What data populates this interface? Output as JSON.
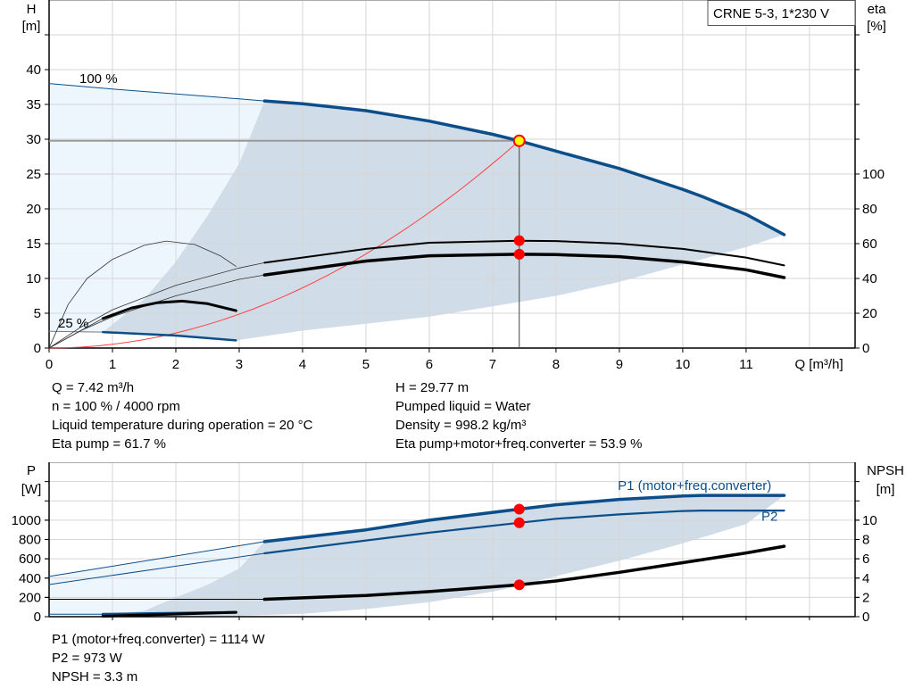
{
  "colors": {
    "curve_blue": "#0b4e8a",
    "shade_dark": "#d0dce7",
    "shade_light": "#eef6fd",
    "grid": "#d6d6d6",
    "duty_point": "#ff0000",
    "duty_fill": "#ffff00",
    "system_curve": "#ff4040"
  },
  "chart_data": [
    {
      "type": "line",
      "title": "CRNE 5-3, 1*230 V",
      "xlabel": "Q [m³/h]",
      "ylabel_left": [
        "H",
        "[m]"
      ],
      "ylabel_right": [
        "eta",
        "[%]"
      ],
      "xlim": [
        0,
        12.72
      ],
      "ylim_left": [
        0,
        50
      ],
      "ylim_right": [
        0,
        200
      ],
      "xticks": [
        0,
        1,
        2,
        3,
        4,
        5,
        6,
        7,
        8,
        9,
        10,
        11
      ],
      "yticks_left": [
        0,
        5,
        10,
        15,
        20,
        25,
        30,
        35,
        40
      ],
      "yticks_right": [
        0,
        20,
        40,
        60,
        80,
        100
      ],
      "grid": true,
      "annotations": [
        "100 %",
        "25 %"
      ],
      "series": [
        {
          "id": "H_100",
          "axis": "left",
          "values": [
            [
              0,
              38
            ],
            [
              1,
              37.2
            ],
            [
              2,
              36.5
            ],
            [
              3,
              35.8
            ],
            [
              3.4,
              35.5
            ],
            [
              4,
              35.1
            ],
            [
              5,
              34.1
            ],
            [
              6,
              32.6
            ],
            [
              7,
              30.7
            ],
            [
              7.42,
              29.77
            ],
            [
              8,
              28.3
            ],
            [
              9,
              25.8
            ],
            [
              10,
              22.8
            ],
            [
              10.3,
              21.8
            ],
            [
              11,
              19.2
            ],
            [
              11.6,
              16.3
            ]
          ]
        },
        {
          "id": "H_25",
          "axis": "left",
          "values": [
            [
              0,
              2.4
            ],
            [
              0.85,
              2.3
            ],
            [
              2,
              1.8
            ],
            [
              2.95,
              1.1
            ]
          ]
        },
        {
          "id": "eta_pump",
          "axis": "right",
          "values": [
            [
              0,
              0
            ],
            [
              0.5,
              12
            ],
            [
              1,
              22
            ],
            [
              2,
              36
            ],
            [
              3,
              46
            ],
            [
              3.4,
              49
            ],
            [
              5,
              57
            ],
            [
              6,
              60.5
            ],
            [
              7.42,
              61.7
            ],
            [
              8,
              61.5
            ],
            [
              9,
              60
            ],
            [
              10,
              57
            ],
            [
              11,
              52
            ],
            [
              11.6,
              47.5
            ]
          ]
        },
        {
          "id": "eta_total",
          "axis": "right",
          "values": [
            [
              0,
              0
            ],
            [
              0.5,
              10
            ],
            [
              1,
              18
            ],
            [
              2,
              30
            ],
            [
              3,
              39.5
            ],
            [
              3.4,
              42
            ],
            [
              5,
              50
            ],
            [
              6,
              53
            ],
            [
              7.42,
              53.9
            ],
            [
              8,
              53.7
            ],
            [
              9,
              52.5
            ],
            [
              10,
              49.5
            ],
            [
              11,
              45
            ],
            [
              11.6,
              40.5
            ]
          ]
        },
        {
          "id": "eta_pump_25",
          "axis": "right",
          "values": [
            [
              0,
              0
            ],
            [
              0.3,
              25
            ],
            [
              0.6,
              40
            ],
            [
              1,
              51
            ],
            [
              1.5,
              59
            ],
            [
              1.85,
              61.5
            ],
            [
              2.3,
              59.5
            ],
            [
              2.7,
              53
            ],
            [
              2.95,
              47
            ]
          ]
        },
        {
          "id": "eta_total_25",
          "axis": "right",
          "values": [
            [
              0,
              0
            ],
            [
              0.4,
              8
            ],
            [
              0.85,
              17
            ],
            [
              1.3,
              23
            ],
            [
              1.7,
              26
            ],
            [
              2.1,
              27
            ],
            [
              2.5,
              25.5
            ],
            [
              2.95,
              21.5
            ]
          ]
        },
        {
          "id": "system_curve",
          "axis": "left",
          "quadratic_through": [
            7.42,
            29.77
          ]
        }
      ],
      "operating_range_lower": [
        [
          2.95,
          1.1
        ],
        [
          4,
          2.5
        ],
        [
          5,
          3.5
        ],
        [
          6,
          4.5
        ],
        [
          7,
          6
        ],
        [
          8,
          7.5
        ],
        [
          9,
          9.5
        ],
        [
          10,
          12
        ],
        [
          11,
          14.5
        ],
        [
          11.6,
          16.3
        ]
      ],
      "operating_range_left": [
        [
          0.85,
          2.3
        ],
        [
          1.5,
          7
        ],
        [
          2,
          12.4
        ],
        [
          2.5,
          19
        ],
        [
          3,
          26.5
        ],
        [
          3.4,
          35.5
        ]
      ],
      "duty_point": {
        "Q": 7.42,
        "H": 29.77,
        "eta_pump": 61.7,
        "eta_total": 53.9
      }
    },
    {
      "type": "line",
      "ylabel_left": [
        "P",
        "[W]"
      ],
      "ylabel_right": [
        "NPSH",
        "[m]"
      ],
      "xlim": [
        0,
        12.72
      ],
      "ylim_left": [
        0,
        1600
      ],
      "ylim_right": [
        0,
        16
      ],
      "yticks_left": [
        0,
        200,
        400,
        600,
        800,
        1000
      ],
      "yticks_right": [
        0,
        2,
        4,
        6,
        8,
        10
      ],
      "grid": true,
      "series": [
        {
          "id": "P1",
          "name": "P1 (motor+freq.converter)",
          "axis": "left",
          "values": [
            [
              0,
              417
            ],
            [
              3.4,
              778
            ],
            [
              5,
              900
            ],
            [
              6,
              1000
            ],
            [
              7.42,
              1114
            ],
            [
              8,
              1160
            ],
            [
              9,
              1215
            ],
            [
              10,
              1250
            ],
            [
              10.3,
              1257
            ],
            [
              11.6,
              1257
            ]
          ]
        },
        {
          "id": "P2",
          "name": "P2",
          "axis": "left",
          "values": [
            [
              0,
              333
            ],
            [
              3.4,
              657
            ],
            [
              5,
              790
            ],
            [
              6,
              870
            ],
            [
              7.42,
              973
            ],
            [
              8,
              1015
            ],
            [
              9,
              1060
            ],
            [
              10,
              1095
            ],
            [
              10.3,
              1100
            ],
            [
              11.6,
              1100
            ]
          ]
        },
        {
          "id": "NPSH",
          "axis": "right",
          "values": [
            [
              0,
              1.8
            ],
            [
              3.4,
              1.8
            ],
            [
              5,
              2.2
            ],
            [
              6,
              2.6
            ],
            [
              7.42,
              3.3
            ],
            [
              8,
              3.7
            ],
            [
              9,
              4.6
            ],
            [
              10,
              5.6
            ],
            [
              11,
              6.6
            ],
            [
              11.6,
              7.3
            ]
          ]
        },
        {
          "id": "P1_25",
          "axis": "left",
          "values": [
            [
              0,
              25
            ],
            [
              0.85,
              25
            ],
            [
              2.95,
              45
            ]
          ]
        },
        {
          "id": "P2_25",
          "axis": "left",
          "values": [
            [
              0.85,
              5
            ],
            [
              2.95,
              45
            ]
          ]
        }
      ],
      "operating_range_lower": [
        [
          0.85,
          5
        ],
        [
          2,
          5
        ],
        [
          3,
          10
        ],
        [
          4,
          30
        ],
        [
          5,
          80
        ],
        [
          6,
          150
        ],
        [
          7,
          260
        ],
        [
          7.42,
          320
        ],
        [
          8,
          420
        ],
        [
          9,
          580
        ],
        [
          10,
          760
        ],
        [
          11,
          960
        ],
        [
          11.6,
          1257
        ]
      ],
      "operating_range_left": [
        [
          0.85,
          20
        ],
        [
          1.5,
          60
        ],
        [
          2,
          200
        ],
        [
          2.5,
          330
        ],
        [
          3,
          500
        ],
        [
          3.4,
          778
        ]
      ],
      "duty_point": {
        "Q": 7.42,
        "P1": 1114,
        "P2": 973,
        "NPSH": 3.3
      }
    }
  ],
  "info_top": {
    "left": [
      "Q = 7.42 m³/h",
      "n = 100 % / 4000 rpm",
      "Liquid temperature during operation = 20 °C",
      "Eta pump = 61.7 %"
    ],
    "right": [
      "H = 29.77 m",
      "Pumped liquid = Water",
      "Density = 998.2 kg/m³",
      "Eta pump+motor+freq.converter = 53.9 %"
    ]
  },
  "info_bottom": [
    "P1 (motor+freq.converter) = 1114 W",
    "P2 = 973 W",
    "NPSH = 3.3 m"
  ]
}
